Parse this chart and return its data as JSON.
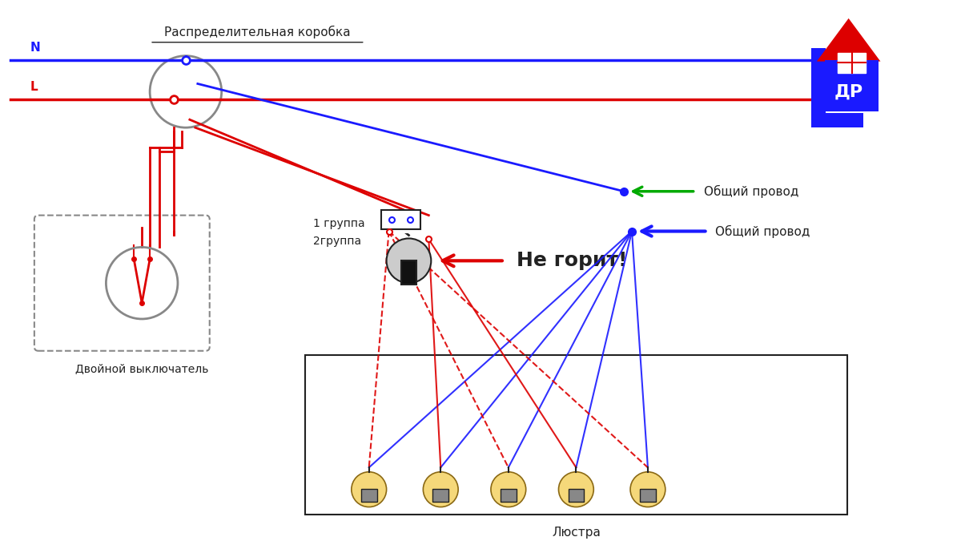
{
  "bg_color": "#ffffff",
  "blue_color": "#1a1aff",
  "red_color": "#dd0000",
  "green_color": "#00aa00",
  "gray_color": "#888888",
  "dark_color": "#222222",
  "title_distrib": "Распределительная коробка",
  "label_N": "N",
  "label_L": "L",
  "label_switch": "Двойной выключатель",
  "label_chandelier": "Люстра",
  "label_group1": "1 группа",
  "label_group2": "2группа",
  "label_common1": "Общий провод",
  "label_common2": "Общий провод",
  "label_no_light": "Не горит!",
  "logo_text": "ДР",
  "figsize": [
    12,
    6.75
  ],
  "dpi": 100
}
